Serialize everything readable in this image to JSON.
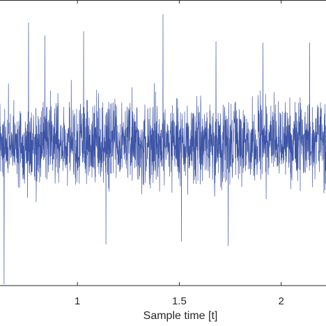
{
  "chart_data": {
    "type": "line",
    "title": "",
    "xlabel": "Sample time [t]",
    "ylabel": "",
    "xlim": [
      0.62,
      2.22
    ],
    "ylim": [
      -1.0,
      1.0
    ],
    "x_ticks": [
      1,
      1.5,
      2
    ],
    "x_tick_labels": [
      "1",
      "1.5",
      "2"
    ],
    "grid": false,
    "legend": "none",
    "series": [
      {
        "color": "#3d54a6",
        "signal": "dense zero-mean random noise",
        "sample_interval": 0.0008,
        "typical_std": 0.14,
        "peaks": [
          {
            "x": 0.64,
            "y": -0.99
          },
          {
            "x": 0.76,
            "y": 0.84
          },
          {
            "x": 0.84,
            "y": 0.75
          },
          {
            "x": 1.03,
            "y": 0.78
          },
          {
            "x": 1.14,
            "y": -0.71
          },
          {
            "x": 1.42,
            "y": 0.9
          },
          {
            "x": 1.51,
            "y": -0.69
          },
          {
            "x": 1.68,
            "y": 0.71
          },
          {
            "x": 1.74,
            "y": -0.72
          },
          {
            "x": 1.91,
            "y": 0.7
          },
          {
            "x": 2.14,
            "y": 0.7
          }
        ]
      }
    ]
  }
}
